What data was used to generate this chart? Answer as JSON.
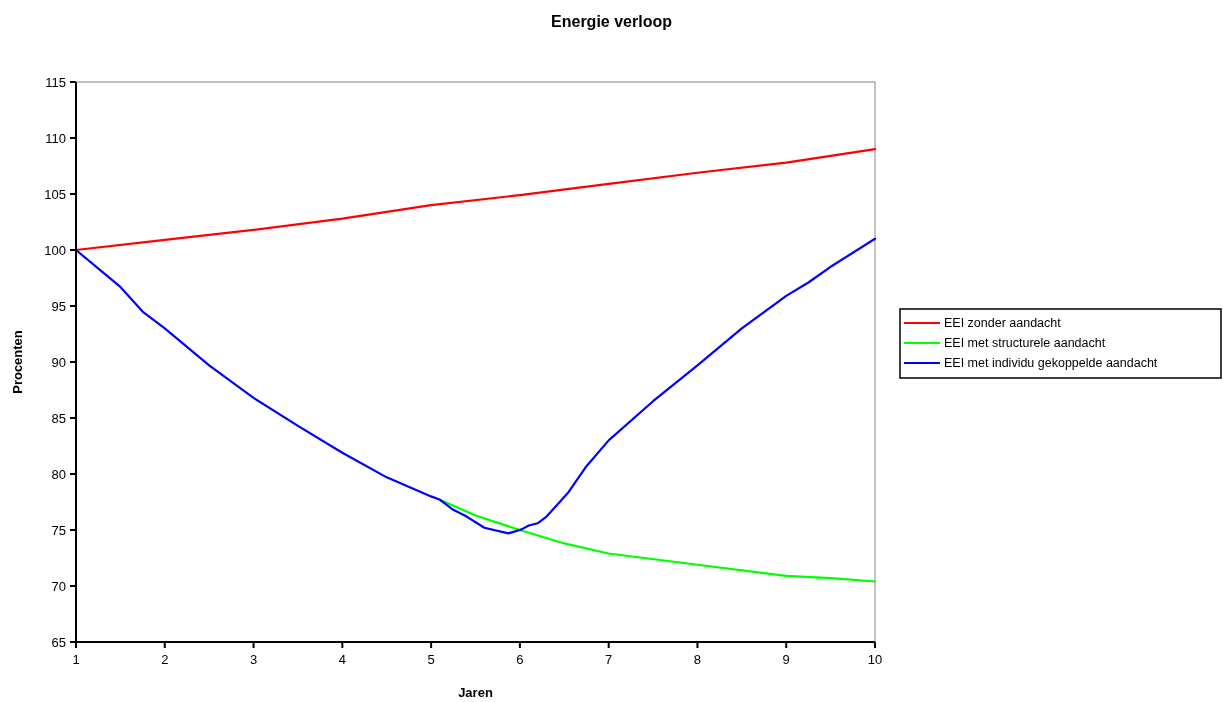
{
  "chart_data": {
    "type": "line",
    "title": "Energie verloop",
    "xlabel": "Jaren",
    "ylabel": "Procenten",
    "xlim": [
      1,
      10
    ],
    "xticks": [
      1,
      2,
      3,
      4,
      5,
      6,
      7,
      8,
      9,
      10
    ],
    "ylim": [
      65,
      115
    ],
    "yticks": [
      65,
      70,
      75,
      80,
      85,
      90,
      95,
      100,
      105,
      110,
      115
    ],
    "grid": false,
    "legend": "right",
    "marker": "none",
    "line_style": "solid",
    "series": [
      {
        "name": "EEI zonder aandacht",
        "color": "#ff0000",
        "x": [
          1,
          2,
          3,
          4,
          5,
          6,
          7,
          8,
          9,
          10
        ],
        "values": [
          100,
          100.9,
          101.8,
          102.8,
          104,
          104.9,
          105.9,
          106.9,
          107.8,
          109
        ]
      },
      {
        "name": "EEI met structurele aandacht",
        "color": "#00ff00",
        "x": [
          5.1,
          5.5,
          6,
          6.5,
          7,
          8,
          9,
          9.5,
          10
        ],
        "values": [
          77.7,
          76.3,
          75,
          73.8,
          72.9,
          71.9,
          70.9,
          70.7,
          70.4
        ]
      },
      {
        "name": "EEI met individu gekoppelde aandacht",
        "color": "#0000ff",
        "x": [
          1,
          1.5,
          1.75,
          2,
          2.5,
          3,
          3.5,
          4,
          4.5,
          5,
          5.1,
          5.25,
          5.4,
          5.6,
          5.87,
          6,
          6.03,
          6.1,
          6.2,
          6.3,
          6.54,
          6.75,
          7,
          7.5,
          8,
          8.5,
          9,
          9.25,
          9.5,
          10
        ],
        "values": [
          100,
          96.7,
          94.5,
          93,
          89.7,
          86.8,
          84.3,
          81.9,
          79.7,
          78,
          77.7,
          76.8,
          76.2,
          75.2,
          74.7,
          75,
          75.1,
          75.4,
          75.6,
          76.2,
          78.3,
          80.7,
          83,
          86.5,
          89.7,
          93,
          95.9,
          97.1,
          98.5,
          101
        ]
      }
    ]
  }
}
